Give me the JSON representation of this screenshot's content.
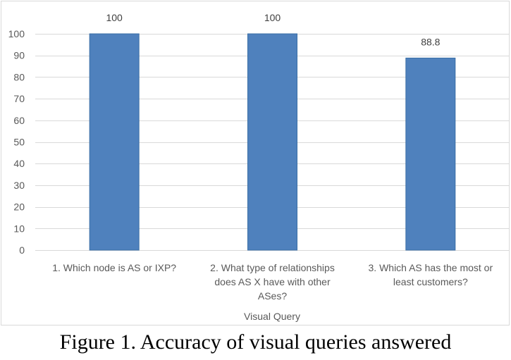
{
  "caption": "Figure 1. Accuracy of visual queries answered",
  "chart_data": {
    "type": "bar",
    "categories": [
      [
        "1. Which node is AS or IXP?"
      ],
      [
        "2. What type of relationships",
        "does AS X have with other",
        "ASes?"
      ],
      [
        "3. Which AS has the most or",
        "least customers?"
      ]
    ],
    "values": [
      100,
      100,
      88.8
    ],
    "data_labels": [
      "100",
      "100",
      "88.8"
    ],
    "xlabel": "Visual Query",
    "ylabel": "",
    "ylim": [
      0,
      100
    ],
    "yticks": [
      0,
      10,
      20,
      30,
      40,
      50,
      60,
      70,
      80,
      90,
      100
    ],
    "grid": true,
    "bar_color": "#4f81bd",
    "bar_border_color": "#3a6ea5",
    "grid_color": "#d9d9d9"
  }
}
